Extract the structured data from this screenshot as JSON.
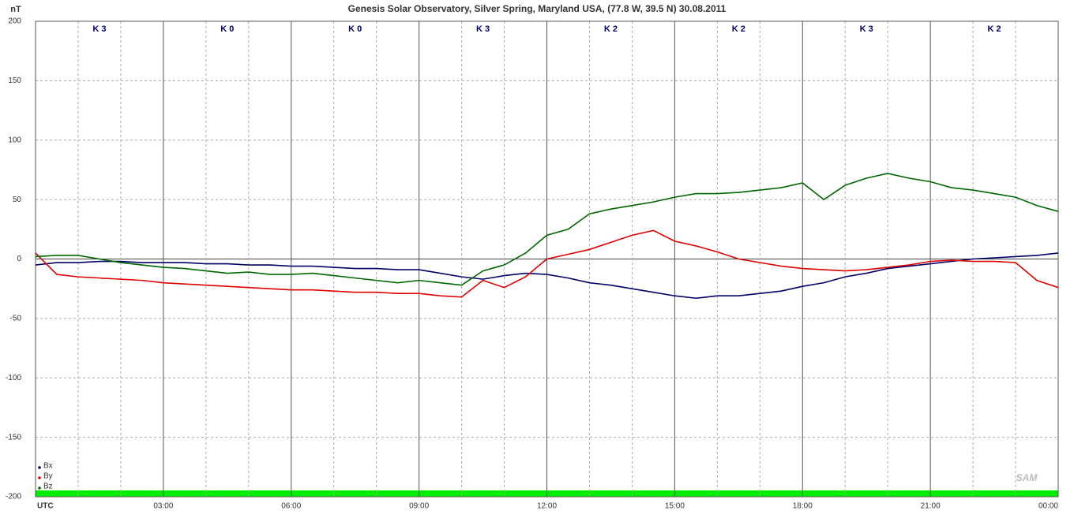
{
  "chart_data": {
    "type": "line",
    "title": "Genesis Solar Observatory, Silver Spring, Maryland USA, (77.8 W, 39.5 N)  30.08.2011",
    "y_label": "nT",
    "k_labels": [
      "K 3",
      "K 0",
      "K 0",
      "K 3",
      "K 2",
      "K 2",
      "K 3",
      "K 2"
    ],
    "logo": "SAM",
    "x": [
      0,
      0.5,
      1,
      1.5,
      2,
      2.5,
      3,
      3.5,
      4,
      4.5,
      5,
      5.5,
      6,
      6.5,
      7,
      7.5,
      8,
      8.5,
      9,
      9.5,
      10,
      10.5,
      11,
      11.5,
      12,
      12.5,
      13,
      13.5,
      14,
      14.5,
      15,
      15.5,
      16,
      16.5,
      17,
      17.5,
      18,
      18.5,
      19,
      19.5,
      20,
      20.5,
      21,
      21.5,
      22,
      22.5,
      23,
      23.5,
      24
    ],
    "series": [
      {
        "name": "Bx",
        "color": "#000066",
        "values": [
          -5,
          -3,
          -3,
          -2,
          -2,
          -3,
          -3,
          -3,
          -4,
          -4,
          -5,
          -5,
          -6,
          -6,
          -7,
          -8,
          -8,
          -9,
          -9,
          -12,
          -15,
          -17,
          -14,
          -12,
          -13,
          -16,
          -20,
          -22,
          -25,
          -28,
          -31,
          -33,
          -31,
          -31,
          -29,
          -27,
          -23,
          -20,
          -15,
          -12,
          -8,
          -6,
          -4,
          -2,
          0,
          1,
          2,
          3,
          5
        ]
      },
      {
        "name": "By",
        "color": "#dd0000",
        "values": [
          5,
          -13,
          -15,
          -16,
          -17,
          -18,
          -20,
          -21,
          -22,
          -23,
          -24,
          -25,
          -26,
          -26,
          -27,
          -28,
          -28,
          -29,
          -29,
          -31,
          -32,
          -18,
          -24,
          -15,
          0,
          4,
          8,
          14,
          20,
          24,
          15,
          11,
          6,
          0,
          -3,
          -6,
          -8,
          -9,
          -10,
          -9,
          -7,
          -5,
          -2,
          -1,
          -2,
          -2,
          -3,
          -18,
          -24
        ]
      },
      {
        "name": "Bz",
        "color": "#006600",
        "values": [
          2,
          3,
          3,
          0,
          -3,
          -5,
          -7,
          -8,
          -10,
          -12,
          -11,
          -13,
          -13,
          -12,
          -14,
          -16,
          -18,
          -20,
          -18,
          -20,
          -22,
          -10,
          -5,
          5,
          20,
          25,
          38,
          42,
          45,
          48,
          52,
          55,
          55,
          56,
          58,
          60,
          64,
          50,
          62,
          68,
          72,
          68,
          65,
          60,
          58,
          55,
          52,
          45,
          40
        ]
      }
    ],
    "xlim": [
      0,
      24
    ],
    "xticks": [
      {
        "value": 0,
        "label": "UTC"
      },
      {
        "value": 3,
        "label": "03:00"
      },
      {
        "value": 6,
        "label": "06:00"
      },
      {
        "value": 9,
        "label": "09:00"
      },
      {
        "value": 12,
        "label": "12:00"
      },
      {
        "value": 15,
        "label": "15:00"
      },
      {
        "value": 18,
        "label": "18:00"
      },
      {
        "value": 21,
        "label": "21:00"
      },
      {
        "value": 24,
        "label": "00:00"
      }
    ],
    "ylim": [
      -200,
      200
    ],
    "yticks": [
      200,
      150,
      100,
      50,
      0,
      -50,
      -100,
      -150,
      -200
    ],
    "grid": true,
    "legend": "lower left"
  }
}
